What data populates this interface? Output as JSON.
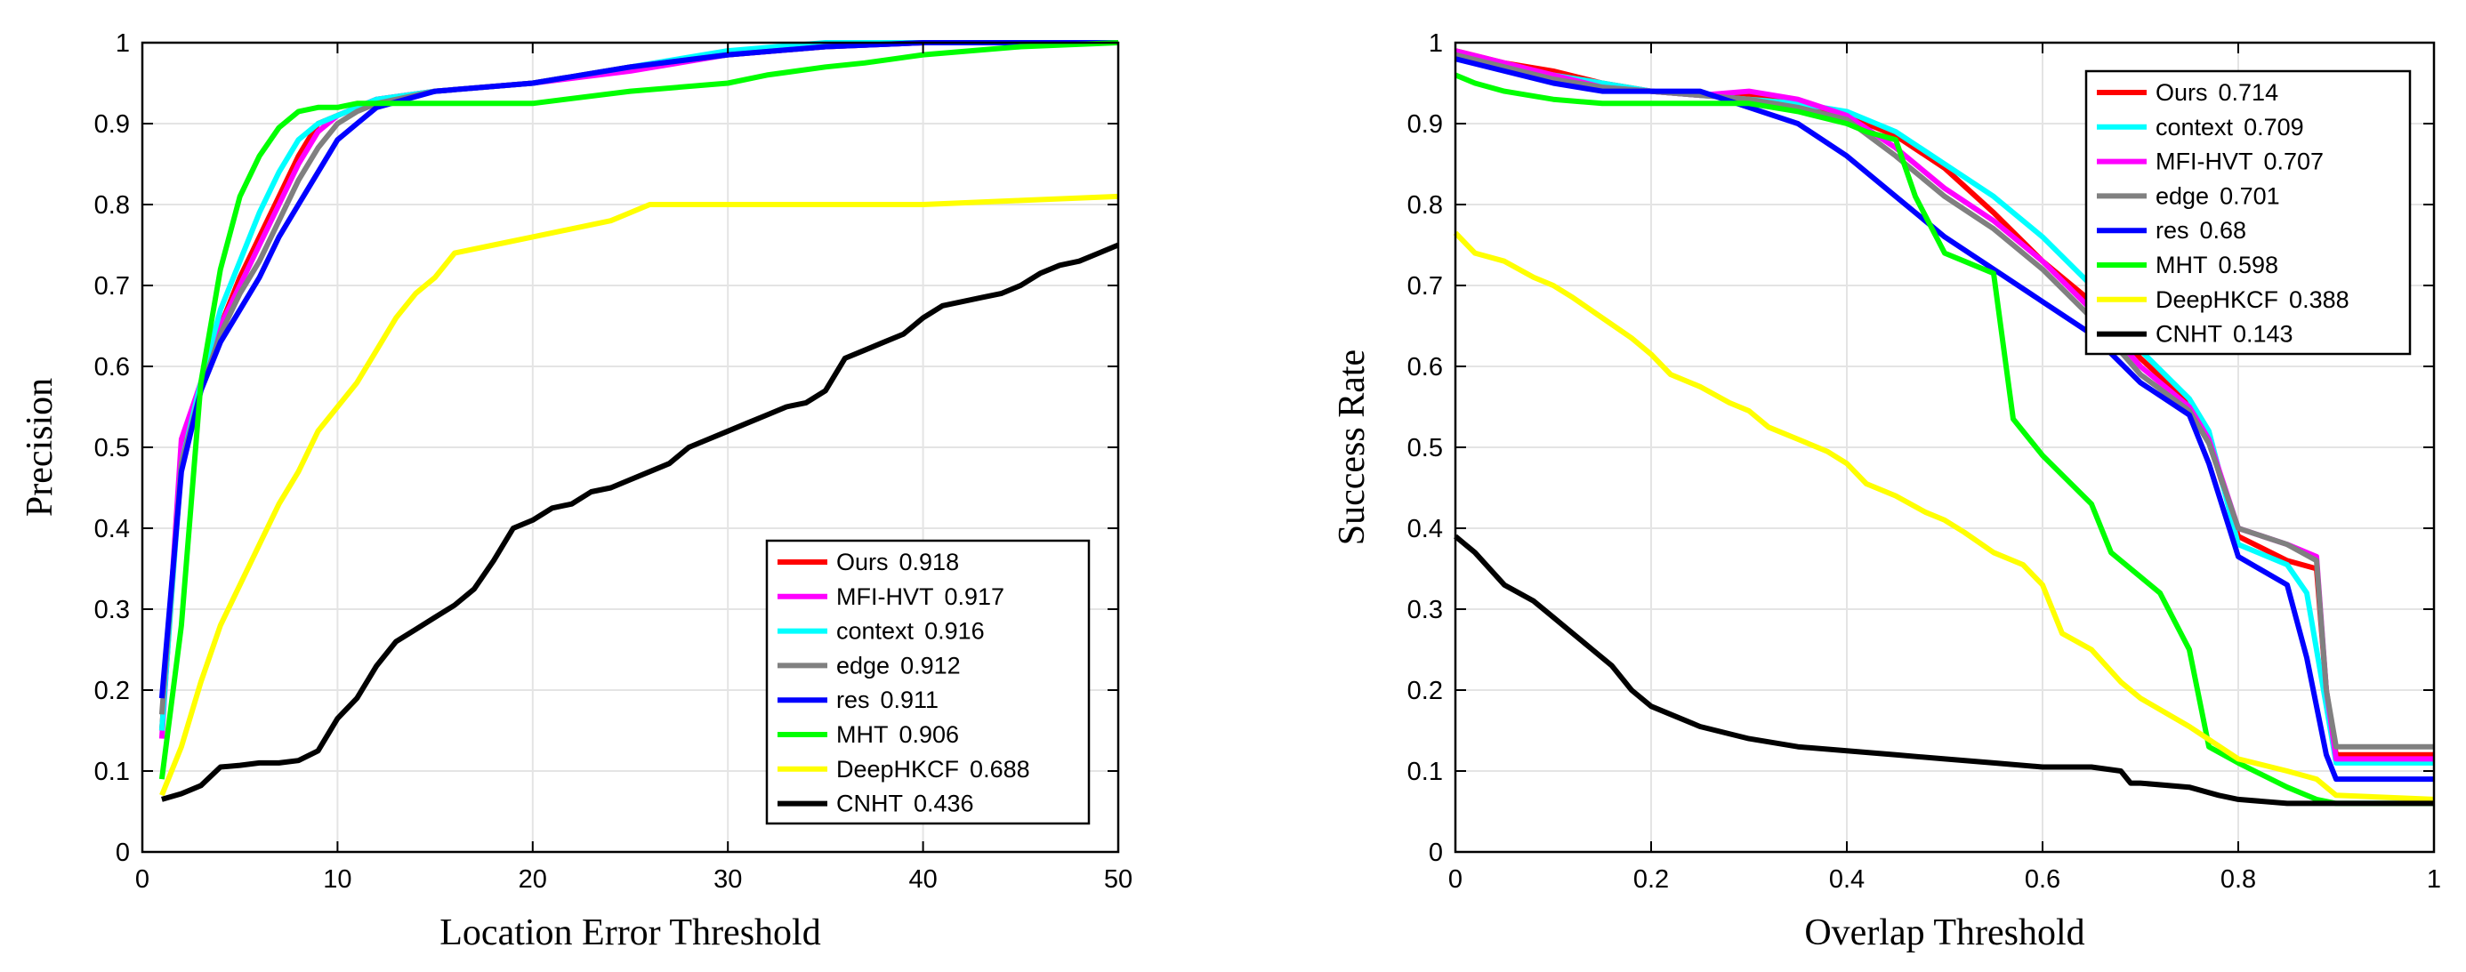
{
  "chart_data": [
    {
      "type": "line",
      "title": "",
      "xlabel": "Location Error Threshold",
      "ylabel": "Precision",
      "xlim": [
        0,
        50
      ],
      "ylim": [
        0,
        1
      ],
      "xticks": [
        "0",
        "10",
        "20",
        "30",
        "40",
        "50"
      ],
      "yticks": [
        "0",
        "0.1",
        "0.2",
        "0.3",
        "0.4",
        "0.5",
        "0.6",
        "0.7",
        "0.8",
        "0.9",
        "1"
      ],
      "grid": true,
      "legend_position": "bottom-right",
      "series": [
        {
          "name": "Ours",
          "score": "0.918",
          "color": "#ff0000",
          "x": [
            1,
            2,
            3,
            4,
            5,
            6,
            7,
            8,
            9,
            10,
            11,
            12,
            15,
            20,
            25,
            30,
            35,
            40,
            45,
            50
          ],
          "y": [
            0.15,
            0.49,
            0.58,
            0.65,
            0.71,
            0.76,
            0.81,
            0.86,
            0.9,
            0.91,
            0.92,
            0.93,
            0.94,
            0.95,
            0.97,
            0.985,
            0.995,
            1.0,
            1.0,
            1.0
          ]
        },
        {
          "name": "MFI-HVT",
          "score": "0.917",
          "color": "#ff00ff",
          "x": [
            1,
            2,
            3,
            4,
            5,
            6,
            7,
            8,
            9,
            10,
            11,
            12,
            15,
            20,
            25,
            30,
            35,
            40,
            45,
            50
          ],
          "y": [
            0.14,
            0.51,
            0.58,
            0.65,
            0.7,
            0.75,
            0.8,
            0.85,
            0.89,
            0.91,
            0.92,
            0.93,
            0.94,
            0.95,
            0.965,
            0.985,
            0.995,
            1.0,
            1.0,
            1.0
          ]
        },
        {
          "name": "context",
          "score": "0.916",
          "color": "#00ffff",
          "x": [
            1,
            2,
            3,
            4,
            5,
            6,
            7,
            8,
            9,
            10,
            11,
            12,
            15,
            20,
            25,
            30,
            35,
            40,
            45,
            50
          ],
          "y": [
            0.15,
            0.48,
            0.58,
            0.67,
            0.73,
            0.79,
            0.84,
            0.88,
            0.9,
            0.91,
            0.92,
            0.93,
            0.94,
            0.95,
            0.97,
            0.99,
            1.0,
            1.0,
            1.0,
            1.0
          ]
        },
        {
          "name": "edge",
          "score": "0.912",
          "color": "#808080",
          "x": [
            1,
            2,
            3,
            4,
            5,
            6,
            7,
            8,
            9,
            10,
            11,
            12,
            15,
            20,
            25,
            30,
            35,
            40,
            45,
            50
          ],
          "y": [
            0.17,
            0.48,
            0.57,
            0.64,
            0.69,
            0.73,
            0.78,
            0.83,
            0.87,
            0.9,
            0.915,
            0.925,
            0.94,
            0.95,
            0.97,
            0.985,
            0.995,
            1.0,
            1.0,
            1.0
          ]
        },
        {
          "name": "res",
          "score": "0.911",
          "color": "#0000ff",
          "x": [
            1,
            2,
            3,
            4,
            5,
            6,
            7,
            8,
            9,
            10,
            11,
            12,
            15,
            20,
            25,
            30,
            35,
            40,
            45,
            50
          ],
          "y": [
            0.19,
            0.47,
            0.57,
            0.63,
            0.67,
            0.71,
            0.76,
            0.8,
            0.84,
            0.88,
            0.9,
            0.92,
            0.94,
            0.95,
            0.97,
            0.985,
            0.995,
            1.0,
            1.0,
            1.0
          ]
        },
        {
          "name": "MHT",
          "score": "0.906",
          "color": "#00ff00",
          "x": [
            1,
            2,
            3,
            4,
            5,
            6,
            7,
            8,
            9,
            10,
            11,
            12,
            15,
            20,
            25,
            30,
            32,
            35,
            37,
            40,
            45,
            50
          ],
          "y": [
            0.09,
            0.28,
            0.58,
            0.72,
            0.81,
            0.86,
            0.895,
            0.915,
            0.92,
            0.92,
            0.925,
            0.925,
            0.925,
            0.925,
            0.94,
            0.95,
            0.96,
            0.97,
            0.975,
            0.985,
            0.995,
            1.0
          ]
        },
        {
          "name": "DeepHKCF",
          "score": "0.688",
          "color": "#ffff00",
          "x": [
            1,
            2,
            3,
            4,
            5,
            6,
            7,
            8,
            9,
            10,
            11,
            12,
            13,
            14,
            15,
            16,
            18,
            20,
            22,
            24,
            25,
            26,
            28,
            30,
            35,
            40,
            45,
            50
          ],
          "y": [
            0.07,
            0.13,
            0.21,
            0.28,
            0.33,
            0.38,
            0.43,
            0.47,
            0.52,
            0.55,
            0.58,
            0.62,
            0.66,
            0.69,
            0.71,
            0.74,
            0.75,
            0.76,
            0.77,
            0.78,
            0.79,
            0.8,
            0.8,
            0.8,
            0.8,
            0.8,
            0.805,
            0.81
          ]
        },
        {
          "name": "CNHT",
          "score": "0.436",
          "color": "#000000",
          "x": [
            1,
            2,
            3,
            4,
            5,
            6,
            7,
            8,
            9,
            10,
            11,
            12,
            13,
            14,
            15,
            16,
            17,
            18,
            19,
            20,
            21,
            22,
            23,
            24,
            25,
            26,
            27,
            28,
            29,
            30,
            31,
            32,
            33,
            34,
            35,
            36,
            37,
            38,
            39,
            40,
            41,
            42,
            43,
            44,
            45,
            46,
            47,
            48,
            49,
            50
          ],
          "y": [
            0.065,
            0.072,
            0.082,
            0.105,
            0.107,
            0.11,
            0.11,
            0.113,
            0.125,
            0.165,
            0.19,
            0.23,
            0.26,
            0.275,
            0.29,
            0.305,
            0.325,
            0.36,
            0.4,
            0.41,
            0.425,
            0.43,
            0.445,
            0.45,
            0.46,
            0.47,
            0.48,
            0.5,
            0.51,
            0.52,
            0.53,
            0.54,
            0.55,
            0.555,
            0.57,
            0.61,
            0.62,
            0.63,
            0.64,
            0.66,
            0.675,
            0.68,
            0.685,
            0.69,
            0.7,
            0.715,
            0.725,
            0.73,
            0.74,
            0.75
          ]
        }
      ]
    },
    {
      "type": "line",
      "title": "",
      "xlabel": "Overlap Threshold",
      "ylabel": "Success Rate",
      "xlim": [
        0,
        1
      ],
      "ylim": [
        0,
        1
      ],
      "xticks": [
        "0",
        "0.2",
        "0.4",
        "0.6",
        "0.8",
        "1"
      ],
      "yticks": [
        "0",
        "0.1",
        "0.2",
        "0.3",
        "0.4",
        "0.5",
        "0.6",
        "0.7",
        "0.8",
        "0.9",
        "1"
      ],
      "grid": true,
      "legend_position": "top-right",
      "series": [
        {
          "name": "Ours",
          "score": "0.714",
          "color": "#ff0000",
          "x": [
            0,
            0.05,
            0.1,
            0.15,
            0.2,
            0.25,
            0.3,
            0.35,
            0.4,
            0.45,
            0.5,
            0.55,
            0.6,
            0.65,
            0.7,
            0.75,
            0.77,
            0.8,
            0.85,
            0.88,
            0.89,
            0.9,
            1.0
          ],
          "y": [
            0.99,
            0.975,
            0.965,
            0.95,
            0.94,
            0.935,
            0.935,
            0.925,
            0.91,
            0.885,
            0.845,
            0.79,
            0.73,
            0.68,
            0.61,
            0.555,
            0.51,
            0.39,
            0.36,
            0.35,
            0.2,
            0.12,
            0.12
          ]
        },
        {
          "name": "context",
          "score": "0.709",
          "color": "#00ffff",
          "x": [
            0,
            0.05,
            0.1,
            0.15,
            0.2,
            0.25,
            0.3,
            0.35,
            0.4,
            0.45,
            0.5,
            0.55,
            0.6,
            0.65,
            0.7,
            0.75,
            0.77,
            0.8,
            0.85,
            0.87,
            0.89,
            0.9,
            1.0
          ],
          "y": [
            0.985,
            0.97,
            0.96,
            0.95,
            0.94,
            0.935,
            0.93,
            0.925,
            0.915,
            0.89,
            0.85,
            0.81,
            0.76,
            0.7,
            0.62,
            0.56,
            0.52,
            0.38,
            0.355,
            0.32,
            0.18,
            0.11,
            0.11
          ]
        },
        {
          "name": "MFI-HVT",
          "score": "0.707",
          "color": "#ff00ff",
          "x": [
            0,
            0.05,
            0.1,
            0.15,
            0.2,
            0.25,
            0.3,
            0.35,
            0.4,
            0.45,
            0.5,
            0.55,
            0.6,
            0.65,
            0.7,
            0.75,
            0.77,
            0.8,
            0.85,
            0.88,
            0.89,
            0.9,
            1.0
          ],
          "y": [
            0.99,
            0.975,
            0.96,
            0.945,
            0.94,
            0.935,
            0.94,
            0.93,
            0.91,
            0.87,
            0.82,
            0.78,
            0.73,
            0.67,
            0.6,
            0.55,
            0.51,
            0.4,
            0.38,
            0.365,
            0.2,
            0.115,
            0.115
          ]
        },
        {
          "name": "edge",
          "score": "0.701",
          "color": "#808080",
          "x": [
            0,
            0.05,
            0.1,
            0.15,
            0.2,
            0.25,
            0.3,
            0.35,
            0.4,
            0.45,
            0.5,
            0.55,
            0.6,
            0.65,
            0.7,
            0.75,
            0.77,
            0.8,
            0.85,
            0.88,
            0.89,
            0.9,
            1.0
          ],
          "y": [
            0.985,
            0.97,
            0.955,
            0.945,
            0.94,
            0.935,
            0.93,
            0.92,
            0.905,
            0.86,
            0.81,
            0.77,
            0.72,
            0.66,
            0.59,
            0.545,
            0.505,
            0.4,
            0.38,
            0.36,
            0.2,
            0.13,
            0.13
          ]
        },
        {
          "name": "res",
          "score": "0.68",
          "color": "#0000ff",
          "x": [
            0,
            0.05,
            0.1,
            0.15,
            0.2,
            0.25,
            0.3,
            0.35,
            0.4,
            0.45,
            0.5,
            0.55,
            0.6,
            0.65,
            0.7,
            0.75,
            0.77,
            0.8,
            0.85,
            0.87,
            0.89,
            0.9,
            1.0
          ],
          "y": [
            0.98,
            0.965,
            0.95,
            0.94,
            0.94,
            0.94,
            0.92,
            0.9,
            0.86,
            0.81,
            0.76,
            0.72,
            0.68,
            0.64,
            0.58,
            0.54,
            0.48,
            0.365,
            0.33,
            0.24,
            0.12,
            0.09,
            0.09
          ]
        },
        {
          "name": "MHT",
          "score": "0.598",
          "color": "#00ff00",
          "x": [
            0,
            0.02,
            0.05,
            0.1,
            0.15,
            0.2,
            0.25,
            0.3,
            0.35,
            0.4,
            0.42,
            0.45,
            0.47,
            0.5,
            0.52,
            0.55,
            0.57,
            0.6,
            0.65,
            0.67,
            0.7,
            0.72,
            0.75,
            0.77,
            0.8,
            0.85,
            0.88,
            0.9,
            1.0
          ],
          "y": [
            0.96,
            0.95,
            0.94,
            0.93,
            0.925,
            0.925,
            0.925,
            0.925,
            0.915,
            0.9,
            0.89,
            0.88,
            0.81,
            0.74,
            0.73,
            0.715,
            0.535,
            0.49,
            0.43,
            0.37,
            0.34,
            0.32,
            0.25,
            0.13,
            0.11,
            0.08,
            0.065,
            0.06,
            0.06
          ]
        },
        {
          "name": "DeepHKCF",
          "score": "0.388",
          "color": "#ffff00",
          "x": [
            0,
            0.02,
            0.05,
            0.08,
            0.1,
            0.12,
            0.15,
            0.18,
            0.2,
            0.22,
            0.25,
            0.28,
            0.3,
            0.32,
            0.35,
            0.38,
            0.4,
            0.42,
            0.45,
            0.48,
            0.5,
            0.52,
            0.55,
            0.58,
            0.6,
            0.62,
            0.65,
            0.68,
            0.7,
            0.75,
            0.8,
            0.85,
            0.88,
            0.9,
            1.0
          ],
          "y": [
            0.765,
            0.74,
            0.73,
            0.71,
            0.7,
            0.685,
            0.66,
            0.635,
            0.615,
            0.59,
            0.575,
            0.555,
            0.545,
            0.525,
            0.51,
            0.495,
            0.48,
            0.455,
            0.44,
            0.42,
            0.41,
            0.395,
            0.37,
            0.355,
            0.33,
            0.27,
            0.25,
            0.21,
            0.19,
            0.155,
            0.115,
            0.1,
            0.09,
            0.07,
            0.065
          ]
        },
        {
          "name": "CNHT",
          "score": "0.143",
          "color": "#000000",
          "x": [
            0,
            0.02,
            0.05,
            0.08,
            0.1,
            0.12,
            0.14,
            0.16,
            0.18,
            0.2,
            0.22,
            0.25,
            0.3,
            0.35,
            0.4,
            0.45,
            0.5,
            0.55,
            0.6,
            0.65,
            0.68,
            0.69,
            0.7,
            0.75,
            0.78,
            0.8,
            0.85,
            0.9,
            1.0
          ],
          "y": [
            0.39,
            0.37,
            0.33,
            0.31,
            0.29,
            0.27,
            0.25,
            0.23,
            0.2,
            0.18,
            0.17,
            0.155,
            0.14,
            0.13,
            0.125,
            0.12,
            0.115,
            0.11,
            0.105,
            0.105,
            0.1,
            0.085,
            0.085,
            0.08,
            0.07,
            0.065,
            0.06,
            0.06,
            0.06
          ]
        }
      ]
    }
  ]
}
